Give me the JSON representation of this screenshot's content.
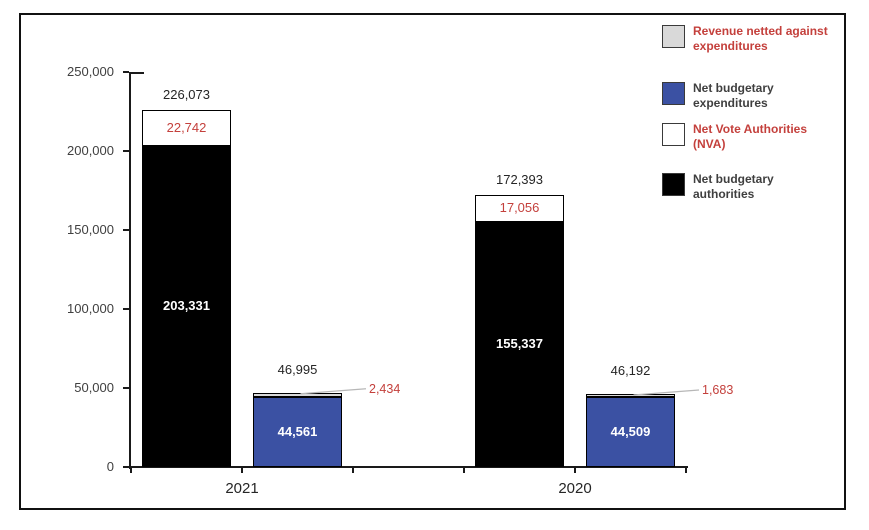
{
  "y_axis": {
    "ticks": [
      "0",
      "50,000",
      "100,000",
      "150,000",
      "200,000",
      "250,000"
    ],
    "tick_values": [
      0,
      50000,
      100000,
      150000,
      200000,
      250000
    ]
  },
  "x_axis": {
    "categories": [
      "2021",
      "2020"
    ]
  },
  "legend": {
    "items": [
      {
        "label": "Revenue netted against\nexpenditures",
        "swatch": "gray",
        "text_color": "red"
      },
      {
        "label": "Net budgetary\nexpenditures",
        "swatch": "blue",
        "text_color": "dark"
      },
      {
        "label": "Net Vote Authorities\n(NVA)",
        "swatch": "white",
        "text_color": "red"
      },
      {
        "label": "Net budgetary\nauthorities",
        "swatch": "black",
        "text_color": "dark"
      }
    ]
  },
  "colors": {
    "blue": "#3B51A3",
    "black": "#000000",
    "white": "#FFFFFF",
    "gray": "#D9D9D9",
    "red_text": "#C4403C",
    "dark_text": "#3F3F3F",
    "axis_text": "#404040",
    "leader_line": "#B7B7B7"
  },
  "chart_data": {
    "type": "bar",
    "stacked": true,
    "title": "",
    "xlabel": "",
    "ylabel": "",
    "ylim": [
      0,
      250000
    ],
    "yticks": [
      0,
      50000,
      100000,
      150000,
      200000,
      250000
    ],
    "categories": [
      "2021",
      "2020"
    ],
    "legend_position": "top-right",
    "grid": false,
    "groups": [
      {
        "category": "2021",
        "bars": [
          {
            "total": 226073,
            "total_label": "226,073",
            "segments": [
              {
                "series": "Net budgetary authorities",
                "value": 203331,
                "label": "203,331",
                "color": "black",
                "label_style": "inside-white"
              },
              {
                "series": "Net Vote Authorities (NVA)",
                "value": 22742,
                "label": "22,742",
                "color": "white",
                "label_style": "inside-red"
              }
            ]
          },
          {
            "total": 46995,
            "total_label": "46,995",
            "segments": [
              {
                "series": "Net budgetary expenditures",
                "value": 44561,
                "label": "44,561",
                "color": "blue",
                "label_style": "inside-white"
              },
              {
                "series": "Revenue netted against expenditures",
                "value": 2434,
                "label": "2,434",
                "color": "gray",
                "label_style": "callout-red"
              }
            ]
          }
        ]
      },
      {
        "category": "2020",
        "bars": [
          {
            "total": 172393,
            "total_label": "172,393",
            "segments": [
              {
                "series": "Net budgetary authorities",
                "value": 155337,
                "label": "155,337",
                "color": "black",
                "label_style": "inside-white"
              },
              {
                "series": "Net Vote Authorities (NVA)",
                "value": 17056,
                "label": "17,056",
                "color": "white",
                "label_style": "inside-red"
              }
            ]
          },
          {
            "total": 46192,
            "total_label": "46,192",
            "segments": [
              {
                "series": "Net budgetary expenditures",
                "value": 44509,
                "label": "44,509",
                "color": "blue",
                "label_style": "inside-white"
              },
              {
                "series": "Revenue netted against expenditures",
                "value": 1683,
                "label": "1,683",
                "color": "gray",
                "label_style": "callout-red"
              }
            ]
          }
        ]
      }
    ]
  }
}
